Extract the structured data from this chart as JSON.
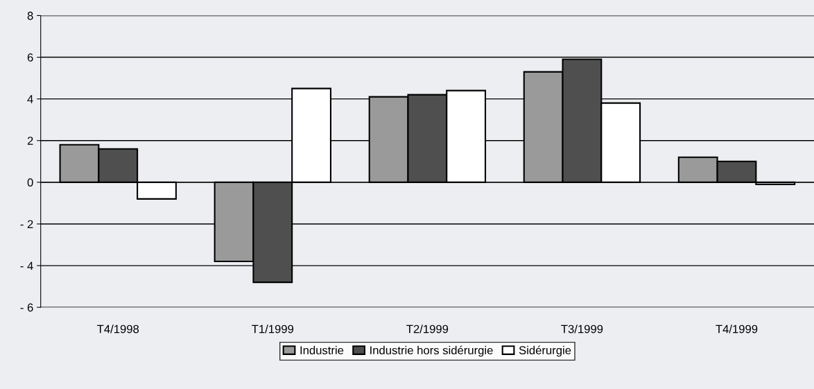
{
  "chart_data": {
    "type": "bar",
    "categories": [
      "T4/1998",
      "T1/1999",
      "T2/1999",
      "T3/1999",
      "T4/1999"
    ],
    "series": [
      {
        "name": "Industrie",
        "color": "#9a9a9a",
        "values": [
          1.8,
          -3.8,
          4.1,
          5.3,
          1.2
        ]
      },
      {
        "name": "Industrie hors sidérurgie",
        "color": "#4f4f4f",
        "values": [
          1.6,
          -4.8,
          4.2,
          5.9,
          1.0
        ]
      },
      {
        "name": "Sidérurgie",
        "color": "#ffffff",
        "values": [
          -0.8,
          4.5,
          4.4,
          3.8,
          -0.1
        ]
      }
    ],
    "ylim": [
      -6,
      8
    ],
    "yticks": [
      {
        "value": -6,
        "label": "- 6"
      },
      {
        "value": -4,
        "label": "- 4"
      },
      {
        "value": -2,
        "label": "- 2"
      },
      0,
      2,
      4,
      6,
      8
    ],
    "grid": "y",
    "legend": "bottom"
  }
}
